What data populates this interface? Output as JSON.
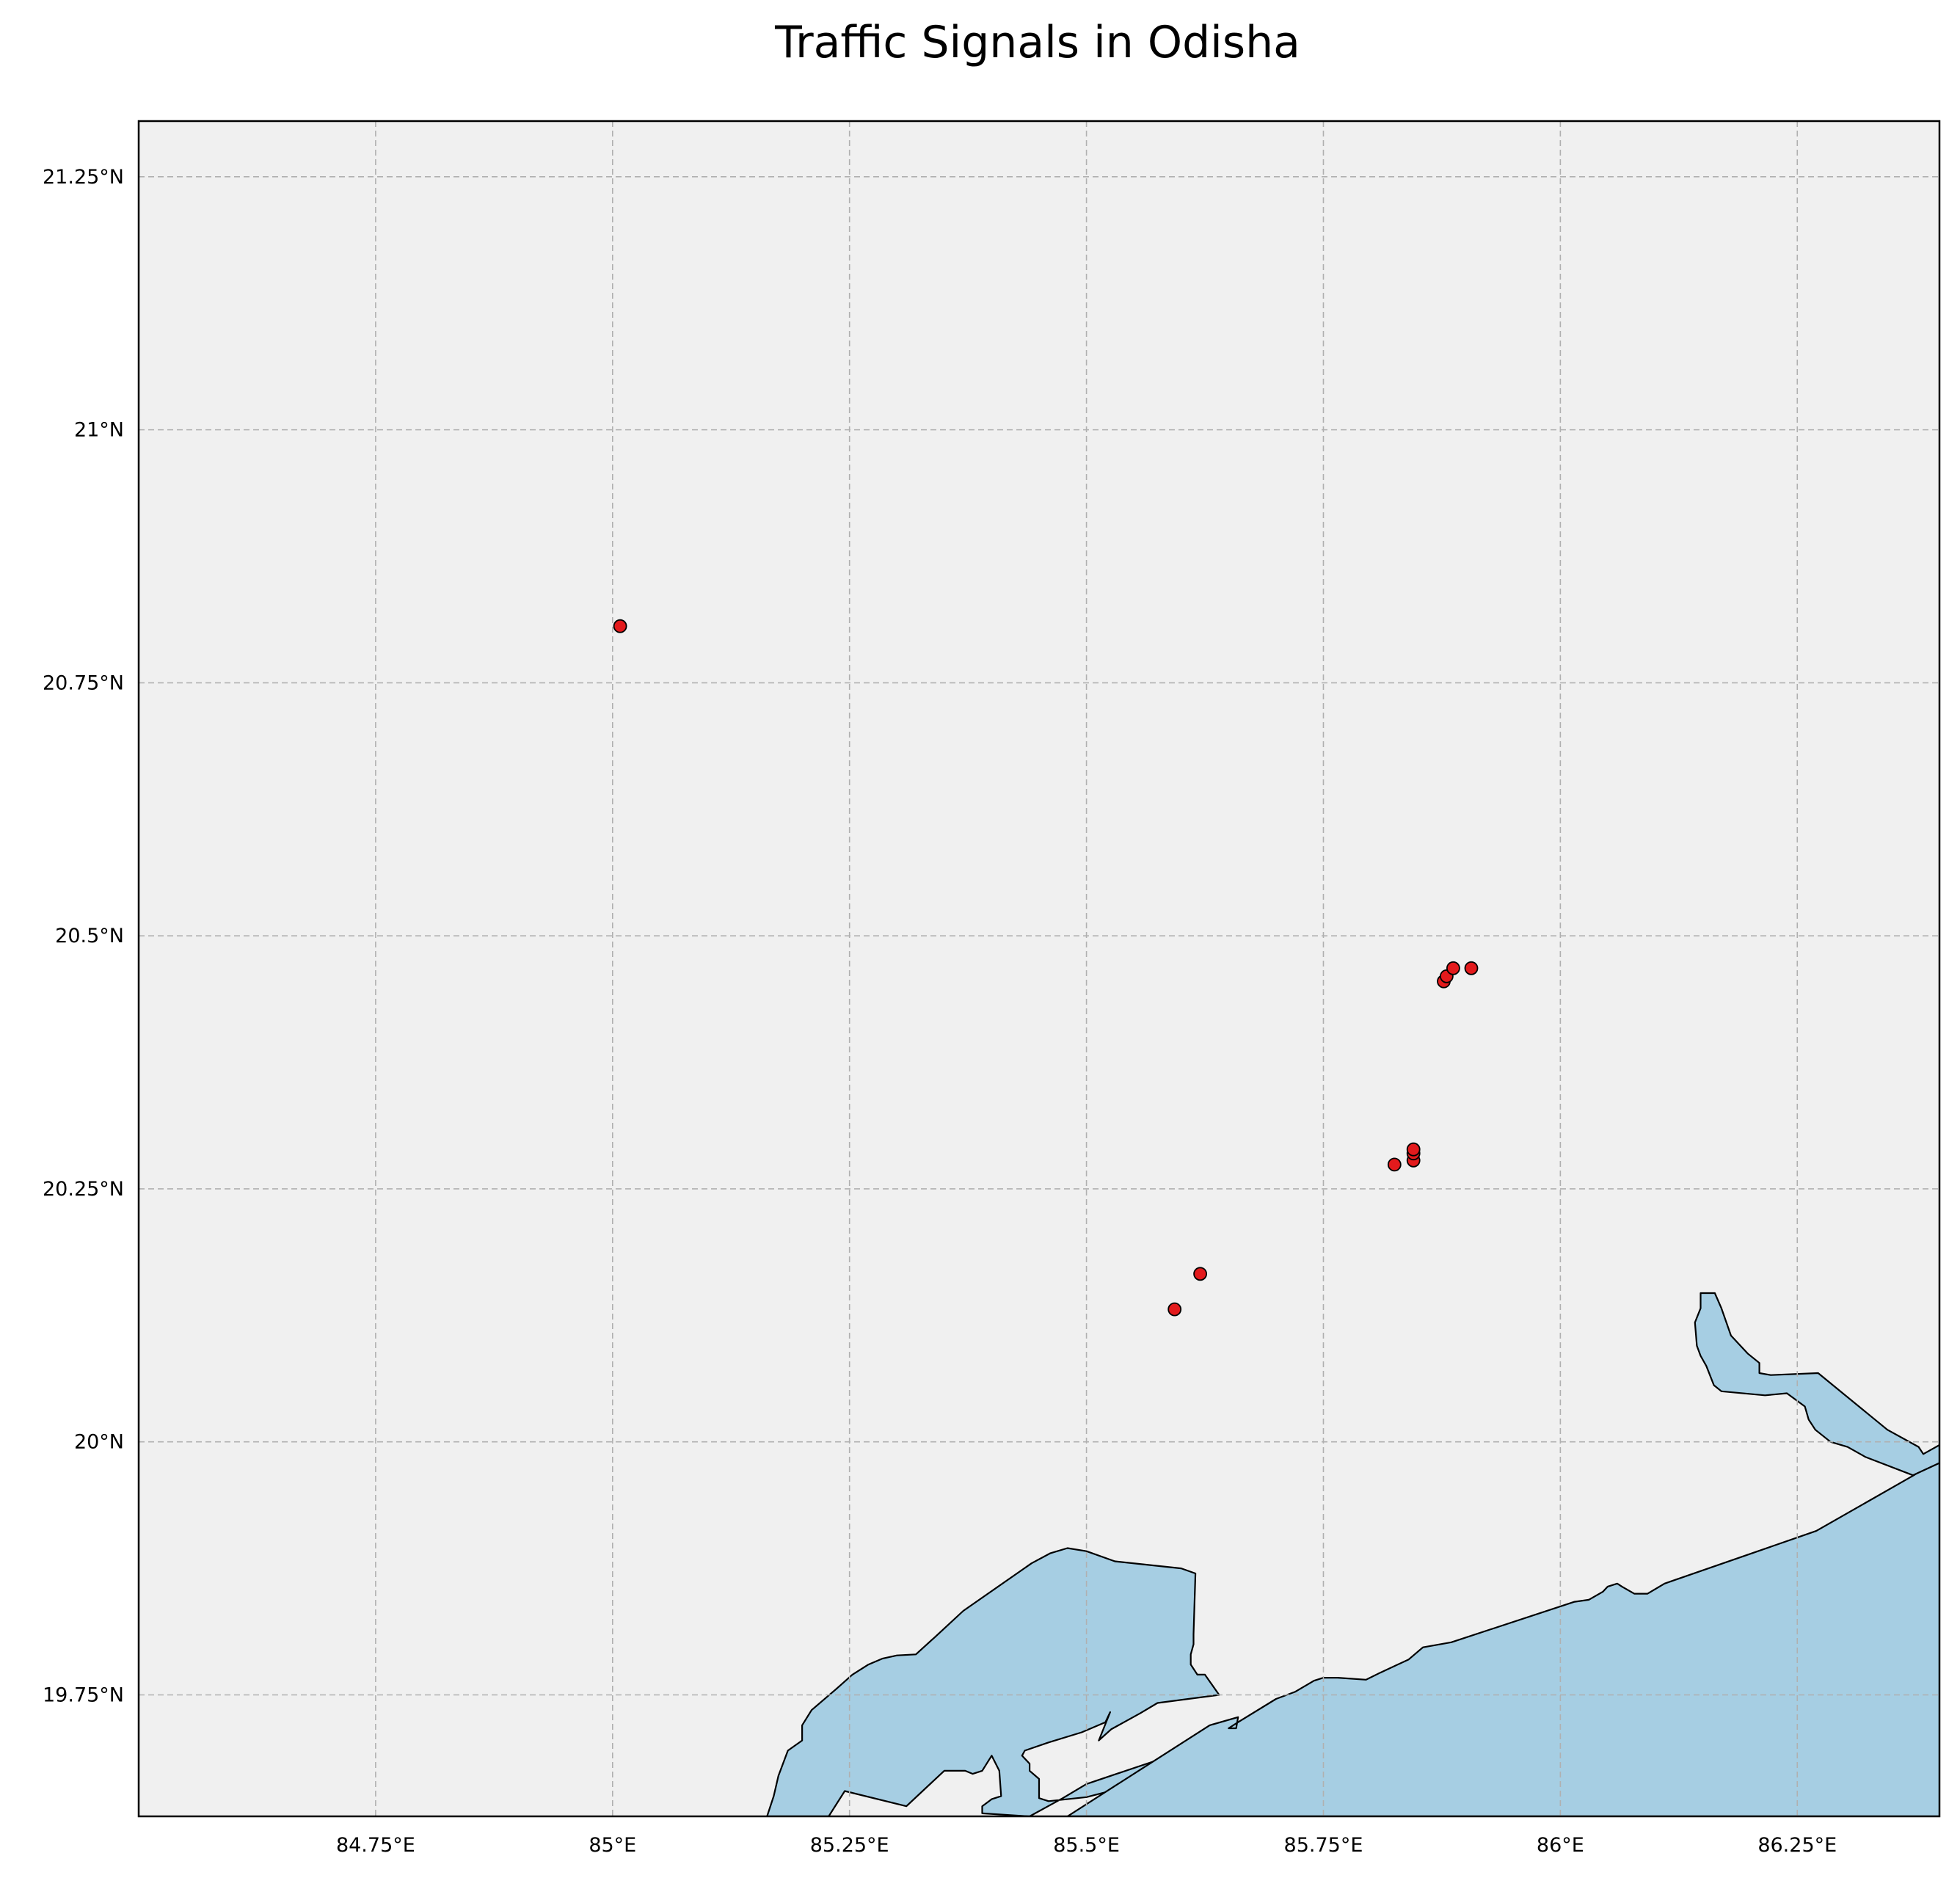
{
  "title": "Traffic Signals in Odisha",
  "colors": {
    "land": "#f0f0f0",
    "water": "#a6cee3",
    "marker_fill": "#e31a1c",
    "marker_edge": "#000000",
    "grid": "#b0b0b0"
  },
  "map": {
    "lon_range": [
      84.5,
      86.4
    ],
    "lat_range": [
      19.63,
      21.305
    ],
    "gridlines": true,
    "x_ticks": [
      {
        "value": 84.75,
        "label": "84.75°E"
      },
      {
        "value": 85.0,
        "label": "85°E"
      },
      {
        "value": 85.25,
        "label": "85.25°E"
      },
      {
        "value": 85.5,
        "label": "85.5°E"
      },
      {
        "value": 85.75,
        "label": "85.75°E"
      },
      {
        "value": 86.0,
        "label": "86°E"
      },
      {
        "value": 86.25,
        "label": "86.25°E"
      }
    ],
    "y_ticks": [
      {
        "value": 21.25,
        "label": "21.25°N"
      },
      {
        "value": 21.0,
        "label": "21°N"
      },
      {
        "value": 20.75,
        "label": "20.75°N"
      },
      {
        "value": 20.5,
        "label": "20.5°N"
      },
      {
        "value": 20.25,
        "label": "20.25°N"
      },
      {
        "value": 20.0,
        "label": "20°N"
      },
      {
        "value": 19.75,
        "label": "19.75°N"
      }
    ],
    "signals": [
      {
        "lon": 85.008,
        "lat": 20.806
      },
      {
        "lon": 85.593,
        "lat": 20.131
      },
      {
        "lon": 85.62,
        "lat": 20.166
      },
      {
        "lon": 85.825,
        "lat": 20.274
      },
      {
        "lon": 85.845,
        "lat": 20.278
      },
      {
        "lon": 85.845,
        "lat": 20.285
      },
      {
        "lon": 85.845,
        "lat": 20.289
      },
      {
        "lon": 85.877,
        "lat": 20.455
      },
      {
        "lon": 85.88,
        "lat": 20.46
      },
      {
        "lon": 85.887,
        "lat": 20.468
      },
      {
        "lon": 85.906,
        "lat": 20.468
      }
    ],
    "water_polygons": [
      [
        [
          85.64,
          19.75
        ],
        [
          85.625,
          19.77
        ],
        [
          85.617,
          19.77
        ],
        [
          85.61,
          19.78
        ],
        [
          85.61,
          19.79
        ],
        [
          85.613,
          19.8
        ],
        [
          85.613,
          19.81
        ],
        [
          85.615,
          19.87
        ],
        [
          85.6,
          19.875
        ],
        [
          85.53,
          19.882
        ],
        [
          85.5,
          19.892
        ],
        [
          85.48,
          19.895
        ],
        [
          85.462,
          19.89
        ],
        [
          85.442,
          19.88
        ],
        [
          85.37,
          19.833
        ],
        [
          85.34,
          19.807
        ],
        [
          85.32,
          19.79
        ],
        [
          85.3,
          19.789
        ],
        [
          85.285,
          19.786
        ],
        [
          85.27,
          19.78
        ],
        [
          85.253,
          19.77
        ],
        [
          85.235,
          19.755
        ],
        [
          85.21,
          19.735
        ],
        [
          85.2,
          19.72
        ],
        [
          85.2,
          19.705
        ],
        [
          85.185,
          19.695
        ],
        [
          85.175,
          19.67
        ],
        [
          85.17,
          19.65
        ],
        [
          85.163,
          19.63
        ],
        [
          85.228,
          19.63
        ],
        [
          85.245,
          19.655
        ],
        [
          85.31,
          19.64
        ],
        [
          85.35,
          19.675
        ],
        [
          85.372,
          19.675
        ],
        [
          85.38,
          19.672
        ],
        [
          85.39,
          19.675
        ],
        [
          85.4,
          19.69
        ],
        [
          85.408,
          19.675
        ],
        [
          85.41,
          19.65
        ],
        [
          85.4,
          19.647
        ],
        [
          85.39,
          19.64
        ],
        [
          85.39,
          19.633
        ],
        [
          85.44,
          19.63
        ],
        [
          85.475,
          19.648
        ],
        [
          85.5,
          19.662
        ],
        [
          85.57,
          19.684
        ],
        [
          85.622,
          19.691
        ],
        [
          85.575,
          19.667
        ],
        [
          85.5,
          19.649
        ],
        [
          85.46,
          19.645
        ],
        [
          85.45,
          19.648
        ],
        [
          85.45,
          19.665
        ],
        [
          85.45,
          19.667
        ],
        [
          85.44,
          19.675
        ],
        [
          85.44,
          19.682
        ],
        [
          85.432,
          19.69
        ],
        [
          85.435,
          19.695
        ],
        [
          85.46,
          19.703
        ],
        [
          85.495,
          19.713
        ],
        [
          85.52,
          19.723
        ],
        [
          85.525,
          19.733
        ],
        [
          85.513,
          19.705
        ],
        [
          85.526,
          19.716
        ],
        [
          85.557,
          19.732
        ],
        [
          85.575,
          19.742
        ],
        [
          85.64,
          19.75
        ]
      ],
      [
        [
          85.63,
          19.72
        ],
        [
          85.66,
          19.728
        ],
        [
          85.658,
          19.717
        ],
        [
          85.65,
          19.717
        ],
        [
          85.66,
          19.723
        ],
        [
          85.7,
          19.746
        ],
        [
          85.72,
          19.753
        ],
        [
          85.74,
          19.764
        ],
        [
          85.75,
          19.767
        ],
        [
          85.765,
          19.767
        ],
        [
          85.795,
          19.765
        ],
        [
          85.81,
          19.772
        ],
        [
          85.84,
          19.785
        ],
        [
          85.855,
          19.797
        ],
        [
          85.885,
          19.802
        ],
        [
          86.015,
          19.842
        ],
        [
          86.03,
          19.844
        ],
        [
          86.045,
          19.852
        ],
        [
          86.05,
          19.857
        ],
        [
          86.06,
          19.86
        ],
        [
          86.065,
          19.857
        ],
        [
          86.078,
          19.85
        ],
        [
          86.092,
          19.85
        ],
        [
          86.11,
          19.86
        ],
        [
          86.27,
          19.912
        ],
        [
          86.373,
          19.967
        ],
        [
          86.402,
          19.985
        ],
        [
          86.402,
          19.63
        ],
        [
          85.48,
          19.63
        ]
      ],
      [
        [
          86.148,
          20.132
        ],
        [
          86.148,
          20.147
        ],
        [
          86.163,
          20.147
        ],
        [
          86.17,
          20.132
        ],
        [
          86.18,
          20.105
        ],
        [
          86.198,
          20.087
        ],
        [
          86.21,
          20.078
        ],
        [
          86.21,
          20.068
        ],
        [
          86.222,
          20.066
        ],
        [
          86.272,
          20.068
        ],
        [
          86.345,
          20.012
        ],
        [
          86.378,
          19.995
        ],
        [
          86.383,
          19.988
        ],
        [
          86.402,
          19.998
        ],
        [
          86.402,
          19.98
        ],
        [
          86.372,
          19.967
        ],
        [
          86.322,
          19.985
        ],
        [
          86.303,
          19.995
        ],
        [
          86.285,
          20.0
        ],
        [
          86.269,
          20.012
        ],
        [
          86.262,
          20.022
        ],
        [
          86.258,
          20.035
        ],
        [
          86.239,
          20.048
        ],
        [
          86.216,
          20.046
        ],
        [
          86.17,
          20.05
        ],
        [
          86.162,
          20.056
        ],
        [
          86.154,
          20.075
        ],
        [
          86.148,
          20.085
        ],
        [
          86.144,
          20.095
        ],
        [
          86.142,
          20.118
        ],
        [
          86.148,
          20.132
        ]
      ]
    ]
  }
}
